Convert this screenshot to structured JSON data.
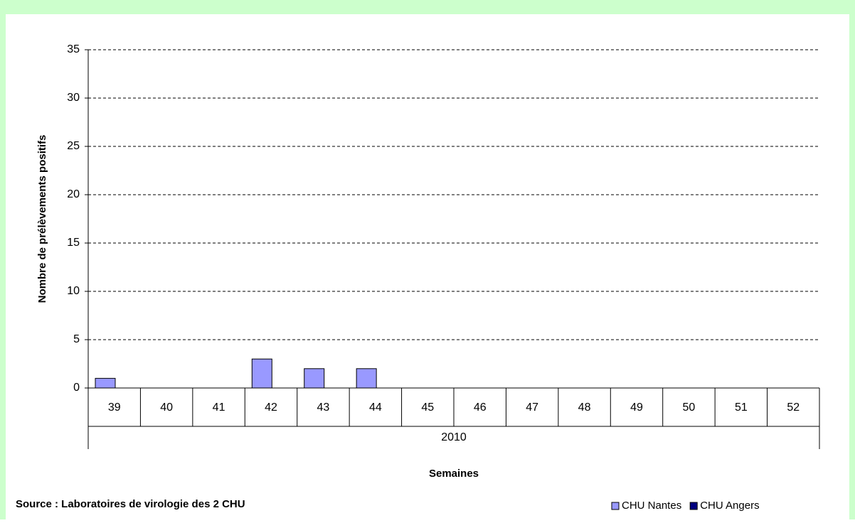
{
  "chart_data": {
    "type": "bar",
    "y_label": "Nombre de prélèvements positifs",
    "x_label": "Semaines",
    "source": "Source : Laboratoires de virologie des 2 CHU",
    "categories": [
      "39",
      "40",
      "41",
      "42",
      "43",
      "44",
      "45",
      "46",
      "47",
      "48",
      "49",
      "50",
      "51",
      "52"
    ],
    "group_label": "2010",
    "series": [
      {
        "name": "CHU Nantes",
        "color": "#9999ff",
        "values": [
          1,
          0,
          0,
          3,
          2,
          2,
          0,
          0,
          0,
          0,
          0,
          0,
          0,
          0
        ]
      },
      {
        "name": "CHU Angers",
        "color": "#000080",
        "values": [
          0,
          0,
          0,
          0,
          0,
          0,
          0,
          0,
          0,
          0,
          0,
          0,
          0,
          0
        ]
      }
    ],
    "ylim": [
      0,
      35
    ],
    "yticks": [
      0,
      5,
      10,
      15,
      20,
      25,
      30,
      35
    ],
    "grid": true,
    "legend": "bottom-right"
  }
}
